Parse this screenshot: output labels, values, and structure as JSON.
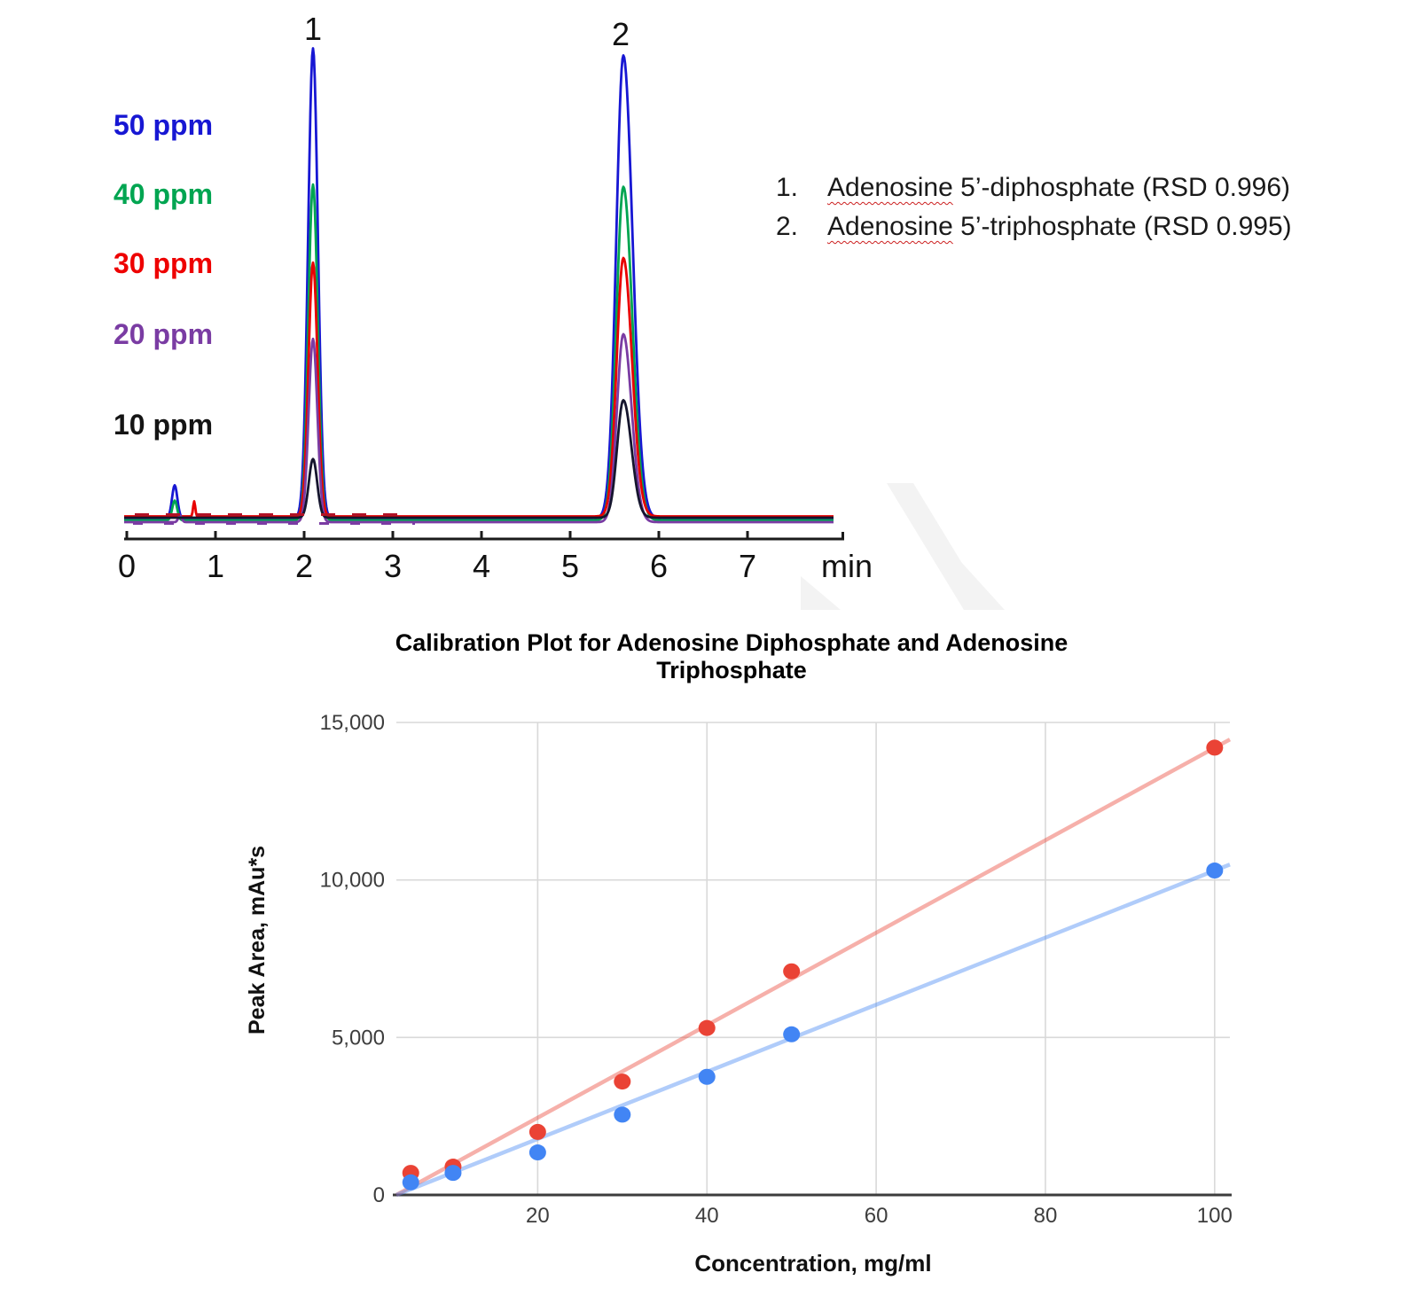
{
  "page": {
    "background": "#ffffff",
    "watermark_color": "#f3f3f3"
  },
  "chromatogram": {
    "peak_labels": [
      "1",
      "2"
    ],
    "legend": [
      {
        "label": "50 ppm",
        "color": "#1717d3"
      },
      {
        "label": "40 ppm",
        "color": "#00a551"
      },
      {
        "label": "30 ppm",
        "color": "#ee0000"
      },
      {
        "label": "20 ppm",
        "color": "#7a3ca3"
      },
      {
        "label": "10 ppm",
        "color": "#141414"
      }
    ],
    "x_unit": "min",
    "annotations": [
      {
        "num": "1.",
        "underlined": "Adenosine",
        "rest": " 5’-diphosphate (RSD 0.996)"
      },
      {
        "num": "2.",
        "underlined": "Adenosine",
        "rest": " 5’-triphosphate (RSD 0.995)"
      }
    ]
  },
  "calibration": {
    "title_line1": "Calibration Plot for Adenosine Diphosphate and Adenosine",
    "title_line2": "Triphosphate",
    "xlabel": "Concentration, mg/ml",
    "ylabel": "Peak Area, mAu*s"
  },
  "chart_data": [
    {
      "id": "chromatogram",
      "type": "line",
      "title": "",
      "xlabel": "min",
      "ylabel": "",
      "x_ticks": [
        0,
        1,
        2,
        3,
        4,
        5,
        6,
        7
      ],
      "xlim": [
        0,
        8.1
      ],
      "grid": false,
      "legend_position": "left",
      "peaks_annotated": [
        {
          "label": "1",
          "time_min": 2.1,
          "compound": "Adenosine 5’-diphosphate"
        },
        {
          "label": "2",
          "time_min": 5.6,
          "compound": "Adenosine 5’-triphosphate"
        }
      ],
      "series": [
        {
          "name": "50 ppm",
          "concentration_ppm": 50,
          "color": "#1717d3",
          "baseline_offset": 0.5,
          "peaks": [
            {
              "time_min": 2.1,
              "rel_height": 100.0,
              "sigma_min": 0.055
            },
            {
              "time_min": 5.6,
              "rel_height": 98.5,
              "sigma_min": 0.08,
              "tail": 1.3
            },
            {
              "time_min": 0.54,
              "rel_height": 7.0,
              "sigma_min": 0.03
            }
          ]
        },
        {
          "name": "40 ppm",
          "concentration_ppm": 40,
          "color": "#00a551",
          "baseline_offset": 3,
          "peaks": [
            {
              "time_min": 2.1,
              "rel_height": 71.5,
              "sigma_min": 0.053
            },
            {
              "time_min": 5.6,
              "rel_height": 71.0,
              "sigma_min": 0.078,
              "tail": 1.3
            },
            {
              "time_min": 0.54,
              "rel_height": 4.2,
              "sigma_min": 0.028
            }
          ]
        },
        {
          "name": "30 ppm",
          "concentration_ppm": 30,
          "color": "#e80000",
          "baseline_offset": -1.5,
          "peaks": [
            {
              "time_min": 2.1,
              "rel_height": 54.0,
              "sigma_min": 0.051
            },
            {
              "time_min": 5.6,
              "rel_height": 55.0,
              "sigma_min": 0.075,
              "tail": 1.3
            },
            {
              "time_min": 0.76,
              "rel_height": 3.2,
              "sigma_min": 0.012
            }
          ]
        },
        {
          "name": "20 ppm",
          "concentration_ppm": 20,
          "color": "#7a3ca3",
          "baseline_offset": 5,
          "peaks": [
            {
              "time_min": 2.1,
              "rel_height": 39.0,
              "sigma_min": 0.049
            },
            {
              "time_min": 5.6,
              "rel_height": 40.0,
              "sigma_min": 0.072,
              "tail": 1.3
            },
            {
              "time_min": 0.6,
              "rel_height": 1.4,
              "sigma_min": 0.02
            }
          ]
        },
        {
          "name": "10 ppm",
          "concentration_ppm": 10,
          "color": "#15152e",
          "baseline_offset": 0,
          "peaks": [
            {
              "time_min": 2.1,
              "rel_height": 12.5,
              "sigma_min": 0.047
            },
            {
              "time_min": 5.6,
              "rel_height": 25.0,
              "sigma_min": 0.07,
              "tail": 1.3
            }
          ]
        }
      ]
    },
    {
      "id": "calibration",
      "type": "scatter",
      "title": "Calibration Plot for Adenosine Diphosphate and Adenosine Triphosphate",
      "xlabel": "Concentration, mg/ml",
      "ylabel": "Peak Area, mAu*s",
      "xlim": [
        3.3,
        101.8
      ],
      "ylim": [
        0,
        15000
      ],
      "grid": true,
      "legend_position": "none",
      "x_gridlines": [
        20,
        40,
        60,
        80,
        100
      ],
      "y_gridlines": [
        5000,
        10000,
        15000
      ],
      "x_tick_labels": [
        {
          "v": 20,
          "label": "20"
        },
        {
          "v": 40,
          "label": "40"
        },
        {
          "v": 60,
          "label": "60"
        },
        {
          "v": 80,
          "label": "80"
        },
        {
          "v": 100,
          "label": "100"
        }
      ],
      "y_tick_labels": [
        {
          "v": 0,
          "label": "0"
        },
        {
          "v": 5000,
          "label": "5,000"
        },
        {
          "v": 10000,
          "label": "10,000"
        },
        {
          "v": 15000,
          "label": "15,000"
        }
      ],
      "series": [
        {
          "name": "series-red",
          "color": "#ea4335",
          "trendline_color": "rgba(234,67,53,0.42)",
          "x": [
            5,
            10,
            20,
            30,
            40,
            50,
            100
          ],
          "y": [
            700,
            900,
            2000,
            3600,
            5300,
            7100,
            14200
          ],
          "trendline": {
            "x": [
              3.3,
              101.8
            ],
            "y": [
              0,
              14460
            ]
          }
        },
        {
          "name": "series-blue",
          "color": "#4285f4",
          "trendline_color": "rgba(66,133,244,0.42)",
          "x": [
            5,
            10,
            20,
            30,
            40,
            50,
            100
          ],
          "y": [
            400,
            700,
            1350,
            2550,
            3750,
            5100,
            10300
          ],
          "trendline": {
            "x": [
              3.3,
              101.8
            ],
            "y": [
              0,
              10490
            ]
          }
        }
      ]
    }
  ]
}
